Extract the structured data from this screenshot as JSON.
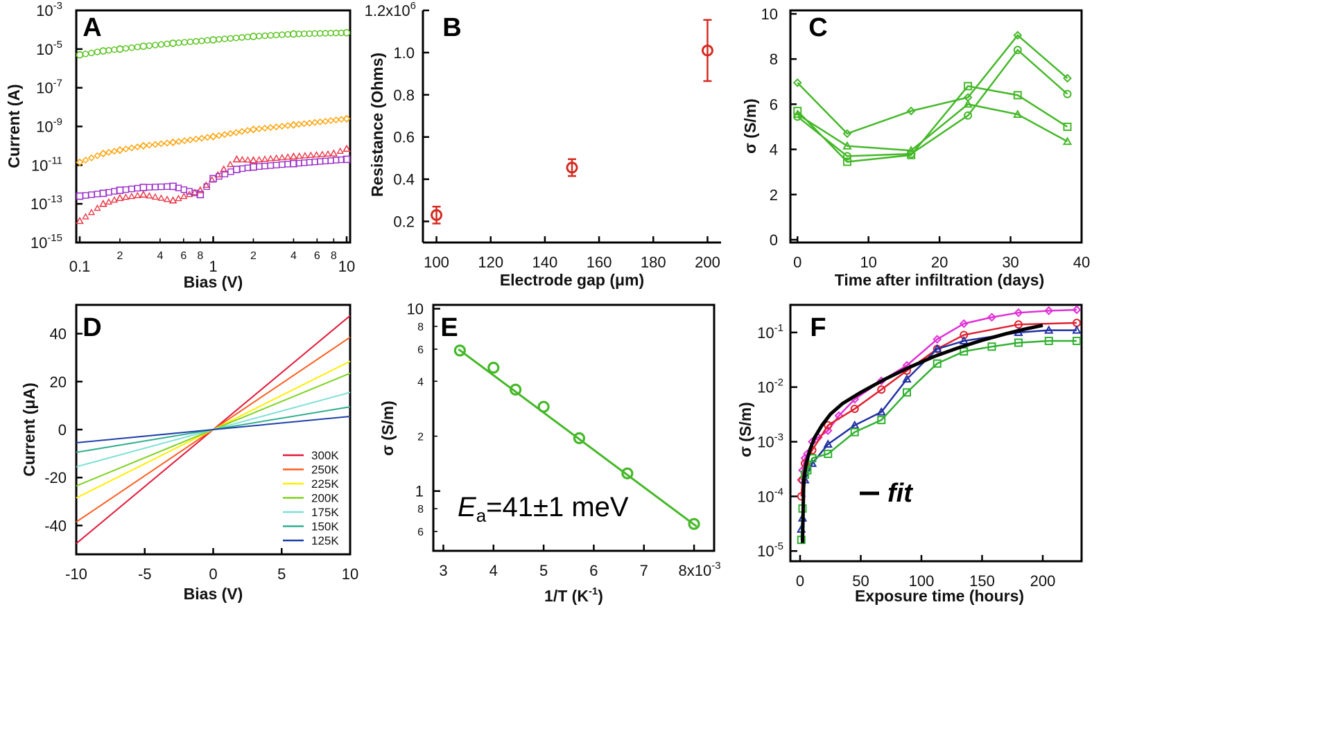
{
  "chart_data": [
    {
      "id": "A",
      "type": "scatter",
      "panel_label": "A",
      "xlabel": "Bias (V)",
      "ylabel": "Current (A)",
      "xscale": "log",
      "yscale": "log",
      "xlim": [
        0.1,
        10
      ],
      "ylim": [
        1e-15,
        0.001
      ],
      "x_major_ticks": [
        "0.1",
        "1",
        "10"
      ],
      "x_minor_ticks": [
        "2",
        "4",
        "6",
        "8",
        "2",
        "4",
        "6",
        "8"
      ],
      "y_ticks": [
        {
          "base": "10",
          "exp": "-3"
        },
        {
          "base": "10",
          "exp": "-5"
        },
        {
          "base": "10",
          "exp": "-7"
        },
        {
          "base": "10",
          "exp": "-9"
        },
        {
          "base": "10",
          "exp": "-11"
        },
        {
          "base": "10",
          "exp": "-13"
        },
        {
          "base": "10",
          "exp": "-15"
        }
      ],
      "series": [
        {
          "name": "green circles",
          "color": "#55c21a",
          "marker": "circle",
          "x": [
            0.1,
            0.15,
            0.2,
            0.3,
            0.5,
            1,
            2,
            4,
            10
          ],
          "y": [
            5e-06,
            8e-06,
            1e-05,
            1.4e-05,
            2e-05,
            3e-05,
            4.5e-05,
            6e-05,
            7e-05
          ]
        },
        {
          "name": "orange diamonds",
          "color": "#ffa000",
          "marker": "diamond",
          "x": [
            0.1,
            0.15,
            0.2,
            0.3,
            0.5,
            1,
            2,
            4,
            10
          ],
          "y": [
            1.4e-11,
            4e-11,
            6e-11,
            1e-10,
            1.5e-10,
            3e-10,
            7e-10,
            1.2e-09,
            2.5e-09
          ]
        },
        {
          "name": "red triangles",
          "color": "#e8394a",
          "marker": "triangle",
          "x": [
            0.1,
            0.15,
            0.2,
            0.3,
            0.5,
            0.8,
            1.2,
            1.5,
            2,
            4,
            8,
            10
          ],
          "y": [
            1.3e-14,
            1e-13,
            2e-13,
            3e-13,
            1.5e-13,
            5e-13,
            6e-12,
            2e-11,
            1.8e-11,
            2.8e-11,
            4e-11,
            7e-11
          ]
        },
        {
          "name": "purple squares",
          "color": "#9b30c8",
          "marker": "square",
          "x": [
            0.1,
            0.15,
            0.2,
            0.3,
            0.5,
            0.8,
            1,
            1.5,
            2,
            4,
            10
          ],
          "y": [
            2.5e-13,
            3.5e-13,
            5e-13,
            7e-13,
            8e-13,
            3e-13,
            2e-12,
            6e-12,
            8e-12,
            1.2e-11,
            2e-11
          ]
        }
      ]
    },
    {
      "id": "B",
      "type": "scatter",
      "panel_label": "B",
      "xlabel": "Electrode gap (μm)",
      "ylabel": "Resistance (Ohms)",
      "xlim": [
        95,
        205
      ],
      "ylim": [
        0.1,
        1.2
      ],
      "x_ticks": [
        "100",
        "120",
        "140",
        "160",
        "180",
        "200"
      ],
      "y_ticks": [
        "0.2",
        "0.4",
        "0.6",
        "0.8",
        "1.0",
        "1.2x10"
      ],
      "y_top_exponent": "6",
      "series": [
        {
          "name": "resistance",
          "color": "#d42a20",
          "marker": "circle",
          "x": [
            100,
            150,
            200
          ],
          "y": [
            0.23,
            0.455,
            1.01
          ],
          "err": [
            0.04,
            0.04,
            0.145
          ]
        }
      ]
    },
    {
      "id": "C",
      "type": "line",
      "panel_label": "C",
      "xlabel": "Time after infiltration (days)",
      "ylabel": "σ (S/m)",
      "xlim": [
        -1,
        40
      ],
      "ylim": [
        0,
        10
      ],
      "x_ticks": [
        "0",
        "10",
        "20",
        "30",
        "40"
      ],
      "y_ticks": [
        "0",
        "2",
        "4",
        "6",
        "8",
        "10"
      ],
      "series": [
        {
          "name": "diamonds",
          "color": "#44b828",
          "marker": "diamond",
          "x": [
            0,
            7,
            16,
            24,
            31,
            38
          ],
          "y": [
            6.95,
            4.7,
            5.7,
            6.3,
            9.05,
            7.15
          ]
        },
        {
          "name": "circles",
          "color": "#44b828",
          "marker": "circle",
          "x": [
            0,
            7,
            16,
            24,
            31,
            38
          ],
          "y": [
            5.45,
            3.7,
            3.8,
            5.5,
            8.4,
            6.45
          ]
        },
        {
          "name": "squares",
          "color": "#44b828",
          "marker": "square",
          "x": [
            0,
            7,
            16,
            24,
            31,
            38
          ],
          "y": [
            5.7,
            3.45,
            3.75,
            6.8,
            6.4,
            5.0
          ]
        },
        {
          "name": "triangles",
          "color": "#44b828",
          "marker": "triangle",
          "x": [
            0,
            7,
            16,
            24,
            31,
            38
          ],
          "y": [
            5.55,
            4.15,
            3.95,
            6.0,
            5.55,
            4.35
          ]
        }
      ]
    },
    {
      "id": "D",
      "type": "line",
      "panel_label": "D",
      "xlabel": "Bias (V)",
      "ylabel": "Current (μA)",
      "xlim": [
        -10,
        10
      ],
      "ylim": [
        -52,
        52
      ],
      "x_ticks": [
        "-10",
        "-5",
        "0",
        "5",
        "10"
      ],
      "y_ticks": [
        "-40",
        "-20",
        "0",
        "20",
        "40"
      ],
      "legend_position": "bottom-right",
      "series": [
        {
          "name": "300K",
          "color": "#e3173a",
          "x": [
            -10,
            10
          ],
          "y": [
            -47.5,
            47.5
          ]
        },
        {
          "name": "250K",
          "color": "#ff5c1f",
          "x": [
            -10,
            10
          ],
          "y": [
            -38.5,
            38.5
          ]
        },
        {
          "name": "225K",
          "color": "#ffee00",
          "x": [
            -10,
            10
          ],
          "y": [
            -28.5,
            28.5
          ]
        },
        {
          "name": "200K",
          "color": "#7ed321",
          "x": [
            -10,
            10
          ],
          "y": [
            -23.5,
            23.5
          ]
        },
        {
          "name": "175K",
          "color": "#7ee0d4",
          "x": [
            -10,
            10
          ],
          "y": [
            -15.5,
            15.5
          ]
        },
        {
          "name": "150K",
          "color": "#2fae8e",
          "x": [
            -10,
            10
          ],
          "y": [
            -9.5,
            9.5
          ]
        },
        {
          "name": "125K",
          "color": "#1e3fa8",
          "x": [
            -10,
            10
          ],
          "y": [
            -5.5,
            5.5
          ]
        }
      ]
    },
    {
      "id": "E",
      "type": "scatter",
      "panel_label": "E",
      "xlabel_main": "1/T (K",
      "xlabel_sup": "-1",
      "xlabel_end": ")",
      "ylabel": "σ (S/m)",
      "yscale": "log",
      "xlim": [
        2.8,
        8.4
      ],
      "ylim": [
        0.47,
        10.5
      ],
      "x_ticks": [
        "3",
        "4",
        "5",
        "6",
        "7",
        "8x10"
      ],
      "x_last_exponent": "-3",
      "y_major_ticks": [
        "1",
        "10"
      ],
      "y_minor_ticks": [
        "6",
        "8",
        "2",
        "4",
        "6",
        "8"
      ],
      "annotation_main": "E",
      "annotation_sub": "a",
      "annotation_rest": "=41±1 meV",
      "fit_line": {
        "x": [
          3.3,
          8.05
        ],
        "y": [
          6.0,
          0.64
        ]
      },
      "series": [
        {
          "name": "sigma",
          "color": "#44b828",
          "marker": "circle",
          "x": [
            3.33,
            4.0,
            4.44,
            5.0,
            5.71,
            6.67,
            8.0
          ],
          "y": [
            5.9,
            4.75,
            3.6,
            2.9,
            1.95,
            1.25,
            0.66
          ]
        }
      ]
    },
    {
      "id": "F",
      "type": "line",
      "panel_label": "F",
      "xlabel": "Exposure time (hours)",
      "ylabel": "σ (S/m)",
      "yscale": "log",
      "xlim": [
        -8,
        232
      ],
      "ylim": [
        6.5e-06,
        0.32
      ],
      "x_ticks": [
        "0",
        "50",
        "100",
        "150",
        "200"
      ],
      "y_ticks": [
        {
          "base": "10",
          "exp": "-1"
        },
        {
          "base": "10",
          "exp": "-2"
        },
        {
          "base": "10",
          "exp": "-3"
        },
        {
          "base": "10",
          "exp": "-4"
        },
        {
          "base": "10",
          "exp": "-5"
        }
      ],
      "fit_label": "fit",
      "series": [
        {
          "name": "magenta diamonds",
          "color": "#e22fd6",
          "marker": "diamond",
          "x": [
            1,
            2,
            4,
            6,
            10,
            15,
            23,
            32,
            45,
            67,
            88,
            113,
            135,
            158,
            180,
            205,
            228
          ],
          "y": [
            0.0002,
            0.0003,
            0.0005,
            0.0006,
            0.001,
            0.0012,
            0.0016,
            0.003,
            0.006,
            0.013,
            0.025,
            0.075,
            0.145,
            0.19,
            0.23,
            0.25,
            0.26
          ]
        },
        {
          "name": "red circles",
          "color": "#e02030",
          "marker": "circle",
          "x": [
            1,
            2,
            4,
            10,
            23,
            45,
            67,
            88,
            113,
            135,
            180,
            228
          ],
          "y": [
            0.0001,
            0.0002,
            0.0004,
            0.0007,
            0.002,
            0.004,
            0.009,
            0.02,
            0.05,
            0.09,
            0.14,
            0.15
          ]
        },
        {
          "name": "blue triangles",
          "color": "#2030a0",
          "marker": "triangle",
          "x": [
            1,
            2,
            4,
            10,
            23,
            45,
            67,
            88,
            113,
            135,
            180,
            205,
            228
          ],
          "y": [
            2.5e-05,
            4e-05,
            0.0002,
            0.0004,
            0.0009,
            0.002,
            0.0035,
            0.014,
            0.05,
            0.07,
            0.1,
            0.11,
            0.11
          ]
        },
        {
          "name": "green squares",
          "color": "#30b030",
          "marker": "square",
          "x": [
            1,
            2,
            4,
            6,
            10,
            23,
            45,
            67,
            88,
            113,
            135,
            158,
            180,
            205,
            228
          ],
          "y": [
            1.6e-05,
            6e-05,
            0.00025,
            0.0003,
            0.0005,
            0.0006,
            0.0015,
            0.0025,
            0.008,
            0.027,
            0.045,
            0.055,
            0.065,
            0.07,
            0.07
          ]
        }
      ],
      "fit_curve": {
        "x": [
          2,
          3,
          5,
          8,
          12,
          18,
          25,
          35,
          50,
          70,
          90,
          110,
          130,
          150,
          170,
          185,
          200
        ],
        "y": [
          1.4e-05,
          0.0002,
          0.0004,
          0.0007,
          0.0012,
          0.002,
          0.0032,
          0.005,
          0.008,
          0.014,
          0.023,
          0.036,
          0.052,
          0.072,
          0.095,
          0.115,
          0.135
        ]
      }
    }
  ]
}
